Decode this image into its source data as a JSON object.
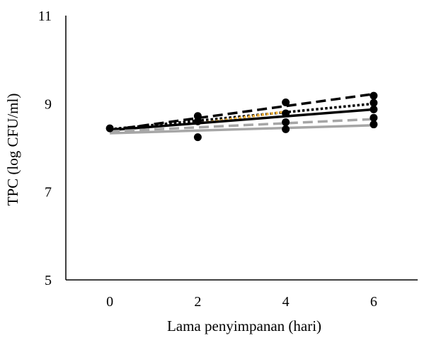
{
  "chart_data": {
    "type": "scatter",
    "xlabel": "Lama penyimpanan (hari)",
    "ylabel": "TPC (log CFU/ml)",
    "xlim": [
      -1,
      7
    ],
    "ylim": [
      5,
      11
    ],
    "x_ticks": [
      "0",
      "2",
      "4",
      "6"
    ],
    "y_ticks": [
      "5",
      "7",
      "9",
      "11"
    ],
    "grid": false,
    "legend": "none",
    "points": [
      {
        "x": 0,
        "y": 8.44
      },
      {
        "x": 2,
        "y": 8.24
      },
      {
        "x": 2,
        "y": 8.6
      },
      {
        "x": 2,
        "y": 8.72
      },
      {
        "x": 4,
        "y": 8.42
      },
      {
        "x": 4,
        "y": 8.58
      },
      {
        "x": 4,
        "y": 8.78
      },
      {
        "x": 4,
        "y": 9.03
      },
      {
        "x": 6,
        "y": 8.53
      },
      {
        "x": 6,
        "y": 8.68
      },
      {
        "x": 6,
        "y": 8.87
      },
      {
        "x": 6,
        "y": 9.02
      },
      {
        "x": 6,
        "y": 9.18
      }
    ],
    "trendlines": [
      {
        "style": "dashed",
        "color": "#000000",
        "x": [
          0,
          6
        ],
        "y": [
          8.4,
          9.22
        ]
      },
      {
        "style": "dotted",
        "color": "#000000",
        "x": [
          0,
          6
        ],
        "y": [
          8.42,
          9.0
        ]
      },
      {
        "style": "dotted",
        "color": "#f0b23c",
        "x": [
          2,
          4
        ],
        "y": [
          8.55,
          8.82
        ]
      },
      {
        "style": "solid",
        "color": "#000000",
        "x": [
          0,
          6
        ],
        "y": [
          8.4,
          8.87
        ]
      },
      {
        "style": "dashed",
        "color": "#a6a6a6",
        "x": [
          0,
          6
        ],
        "y": [
          8.37,
          8.65
        ]
      },
      {
        "style": "solid",
        "color": "#a6a6a6",
        "x": [
          0,
          6
        ],
        "y": [
          8.33,
          8.51
        ]
      }
    ]
  }
}
